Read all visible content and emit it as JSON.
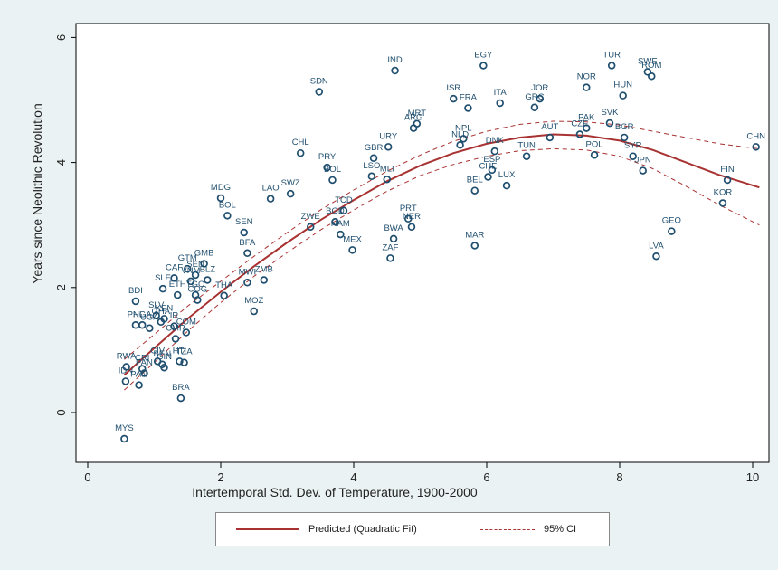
{
  "chart_data": {
    "type": "scatter",
    "xlabel": "Intertemporal Std. Dev. of Temperature, 1900-2000",
    "ylabel": "Years since Neolithic Revolution",
    "xlim": [
      0,
      10.3
    ],
    "ylim": [
      -0.5,
      6.2
    ],
    "xticks": [
      0,
      2,
      4,
      6,
      8,
      10
    ],
    "yticks": [
      0,
      2,
      4,
      6
    ],
    "grid": false,
    "legend_position": "bottom",
    "points": [
      {
        "label": "MYS",
        "x": 0.55,
        "y": -0.42
      },
      {
        "label": "IDN",
        "x": 0.57,
        "y": 0.5
      },
      {
        "label": "RWA",
        "x": 0.58,
        "y": 0.73
      },
      {
        "label": "PAN",
        "x": 0.77,
        "y": 0.44
      },
      {
        "label": "PAN",
        "x": 0.85,
        "y": 0.63
      },
      {
        "label": "CRI",
        "x": 0.82,
        "y": 0.7
      },
      {
        "label": "BDI",
        "x": 0.72,
        "y": 1.78
      },
      {
        "label": "PHL",
        "x": 0.72,
        "y": 1.4
      },
      {
        "label": "NGA",
        "x": 0.82,
        "y": 1.4
      },
      {
        "label": "SLV",
        "x": 1.03,
        "y": 1.55
      },
      {
        "label": "KEN",
        "x": 1.15,
        "y": 1.5
      },
      {
        "label": "UGA",
        "x": 0.93,
        "y": 1.35
      },
      {
        "label": "GHA",
        "x": 1.1,
        "y": 1.45
      },
      {
        "label": "CIV",
        "x": 1.05,
        "y": 0.82
      },
      {
        "label": "BEN",
        "x": 1.12,
        "y": 0.77
      },
      {
        "label": "GIN",
        "x": 1.15,
        "y": 0.72
      },
      {
        "label": "HTI",
        "x": 1.38,
        "y": 0.82
      },
      {
        "label": "TZA",
        "x": 1.45,
        "y": 0.8
      },
      {
        "label": "BRA",
        "x": 1.4,
        "y": 0.23
      },
      {
        "label": "CMR",
        "x": 1.32,
        "y": 1.18
      },
      {
        "label": "COM",
        "x": 1.48,
        "y": 1.28
      },
      {
        "label": "IR",
        "x": 1.3,
        "y": 1.38
      },
      {
        "label": "SLE",
        "x": 1.13,
        "y": 1.98
      },
      {
        "label": "CAF",
        "x": 1.3,
        "y": 2.15
      },
      {
        "label": "ETH",
        "x": 1.35,
        "y": 1.88
      },
      {
        "label": "GTM",
        "x": 1.5,
        "y": 2.3
      },
      {
        "label": "GMB",
        "x": 1.75,
        "y": 2.38
      },
      {
        "label": "SEN",
        "x": 1.62,
        "y": 2.2
      },
      {
        "label": "VNM",
        "x": 1.55,
        "y": 2.1
      },
      {
        "label": "BLZ",
        "x": 1.8,
        "y": 2.12
      },
      {
        "label": "TGO",
        "x": 1.62,
        "y": 1.88
      },
      {
        "label": "COG",
        "x": 1.65,
        "y": 1.8
      },
      {
        "label": "THA",
        "x": 2.05,
        "y": 1.87
      },
      {
        "label": "MWI",
        "x": 2.4,
        "y": 2.08
      },
      {
        "label": "ZMB",
        "x": 2.65,
        "y": 2.12
      },
      {
        "label": "BFA",
        "x": 2.4,
        "y": 2.55
      },
      {
        "label": "SEN",
        "x": 2.35,
        "y": 2.88
      },
      {
        "label": "BOL",
        "x": 2.1,
        "y": 3.15
      },
      {
        "label": "MDG",
        "x": 2.0,
        "y": 3.43
      },
      {
        "label": "LAO",
        "x": 2.75,
        "y": 3.42
      },
      {
        "label": "SWZ",
        "x": 3.05,
        "y": 3.5
      },
      {
        "label": "MOZ",
        "x": 2.5,
        "y": 1.62
      },
      {
        "label": "CHL",
        "x": 3.2,
        "y": 4.15
      },
      {
        "label": "SDN",
        "x": 3.48,
        "y": 5.13
      },
      {
        "label": "PRY",
        "x": 3.6,
        "y": 3.92
      },
      {
        "label": "BOL",
        "x": 3.68,
        "y": 3.72
      },
      {
        "label": "ZWE",
        "x": 3.35,
        "y": 2.97
      },
      {
        "label": "TCD",
        "x": 3.85,
        "y": 3.23
      },
      {
        "label": "BGD",
        "x": 3.72,
        "y": 3.05
      },
      {
        "label": "NAM",
        "x": 3.8,
        "y": 2.85
      },
      {
        "label": "MEX",
        "x": 3.98,
        "y": 2.6
      },
      {
        "label": "IND",
        "x": 4.62,
        "y": 5.47
      },
      {
        "label": "GBR",
        "x": 4.3,
        "y": 4.07
      },
      {
        "label": "URY",
        "x": 4.52,
        "y": 4.25
      },
      {
        "label": "LSO",
        "x": 4.27,
        "y": 3.78
      },
      {
        "label": "MLI",
        "x": 4.5,
        "y": 3.73
      },
      {
        "label": "MRT",
        "x": 4.95,
        "y": 4.62
      },
      {
        "label": "ARG",
        "x": 4.9,
        "y": 4.55
      },
      {
        "label": "PRT",
        "x": 4.82,
        "y": 3.1
      },
      {
        "label": "NER",
        "x": 4.87,
        "y": 2.97
      },
      {
        "label": "BWA",
        "x": 4.6,
        "y": 2.78
      },
      {
        "label": "ZAF",
        "x": 4.55,
        "y": 2.47
      },
      {
        "label": "EGY",
        "x": 5.95,
        "y": 5.55
      },
      {
        "label": "ISR",
        "x": 5.5,
        "y": 5.02
      },
      {
        "label": "FRA",
        "x": 5.72,
        "y": 4.87
      },
      {
        "label": "NPL",
        "x": 5.65,
        "y": 4.38
      },
      {
        "label": "NLD",
        "x": 5.6,
        "y": 4.28
      },
      {
        "label": "DNK",
        "x": 6.12,
        "y": 4.18
      },
      {
        "label": "ESP",
        "x": 6.08,
        "y": 3.88
      },
      {
        "label": "CHE",
        "x": 6.02,
        "y": 3.77
      },
      {
        "label": "BEL",
        "x": 5.82,
        "y": 3.55
      },
      {
        "label": "LUX",
        "x": 6.3,
        "y": 3.63
      },
      {
        "label": "MAR",
        "x": 5.82,
        "y": 2.67
      },
      {
        "label": "ITA",
        "x": 6.2,
        "y": 4.95
      },
      {
        "label": "JOR",
        "x": 6.8,
        "y": 5.02
      },
      {
        "label": "GRC",
        "x": 6.72,
        "y": 4.88
      },
      {
        "label": "TUN",
        "x": 6.6,
        "y": 4.1
      },
      {
        "label": "AUT",
        "x": 6.95,
        "y": 4.4
      },
      {
        "label": "NOR",
        "x": 7.5,
        "y": 5.2
      },
      {
        "label": "TUR",
        "x": 7.88,
        "y": 5.55
      },
      {
        "label": "PAK",
        "x": 7.5,
        "y": 4.55
      },
      {
        "label": "CZE",
        "x": 7.4,
        "y": 4.45
      },
      {
        "label": "SVK",
        "x": 7.85,
        "y": 4.63
      },
      {
        "label": "POL",
        "x": 7.62,
        "y": 4.12
      },
      {
        "label": "HUN",
        "x": 8.05,
        "y": 5.07
      },
      {
        "label": "BGR",
        "x": 8.07,
        "y": 4.4
      },
      {
        "label": "SYR",
        "x": 8.2,
        "y": 4.1
      },
      {
        "label": "JPN",
        "x": 8.35,
        "y": 3.87
      },
      {
        "label": "SWE",
        "x": 8.42,
        "y": 5.45
      },
      {
        "label": "ROM",
        "x": 8.48,
        "y": 5.38
      },
      {
        "label": "GEO",
        "x": 8.78,
        "y": 2.9
      },
      {
        "label": "LVA",
        "x": 8.55,
        "y": 2.5
      },
      {
        "label": "CHN",
        "x": 10.05,
        "y": 4.25
      },
      {
        "label": "FIN",
        "x": 9.62,
        "y": 3.72
      },
      {
        "label": "KOR",
        "x": 9.55,
        "y": 3.35
      }
    ],
    "series": [
      {
        "name": "Predicted (Quadratic Fit)",
        "style": "solid",
        "color": "#a83232",
        "x": [
          0.55,
          1.0,
          1.5,
          2.0,
          2.5,
          3.0,
          3.5,
          4.0,
          4.5,
          5.0,
          5.5,
          6.0,
          6.5,
          7.0,
          7.5,
          8.0,
          8.5,
          9.0,
          9.5,
          10.1
        ],
        "y": [
          0.6,
          1.03,
          1.5,
          1.93,
          2.34,
          2.72,
          3.08,
          3.4,
          3.7,
          3.95,
          4.15,
          4.3,
          4.4,
          4.45,
          4.43,
          4.35,
          4.2,
          4.0,
          3.8,
          3.6
        ]
      },
      {
        "name": "95% CI",
        "style": "dashed",
        "color": "#a83232",
        "x": [
          0.55,
          1.0,
          1.5,
          2.0,
          2.5,
          3.0,
          3.5,
          4.0,
          4.5,
          5.0,
          5.5,
          6.0,
          6.5,
          7.0,
          7.5,
          8.0,
          8.5,
          9.0,
          9.5,
          10.1
        ],
        "y": [
          0.85,
          1.25,
          1.7,
          2.1,
          2.5,
          2.88,
          3.24,
          3.56,
          3.86,
          4.12,
          4.34,
          4.5,
          4.61,
          4.66,
          4.65,
          4.6,
          4.5,
          4.4,
          4.3,
          4.22
        ]
      },
      {
        "name": "95% CI",
        "style": "dashed",
        "color": "#a83232",
        "x": [
          0.55,
          1.0,
          1.5,
          2.0,
          2.5,
          3.0,
          3.5,
          4.0,
          4.5,
          5.0,
          5.5,
          6.0,
          6.5,
          7.0,
          7.5,
          8.0,
          8.5,
          9.0,
          9.5,
          10.1
        ],
        "y": [
          0.36,
          0.8,
          1.3,
          1.76,
          2.18,
          2.56,
          2.92,
          3.24,
          3.54,
          3.79,
          3.97,
          4.1,
          4.19,
          4.22,
          4.2,
          4.1,
          3.9,
          3.62,
          3.32,
          3.0
        ]
      }
    ],
    "colors": {
      "marker": "#1f4e6e",
      "fit": "#a83232"
    }
  },
  "legend": {
    "fit_label": "Predicted (Quadratic Fit)",
    "ci_label": "95% CI"
  }
}
